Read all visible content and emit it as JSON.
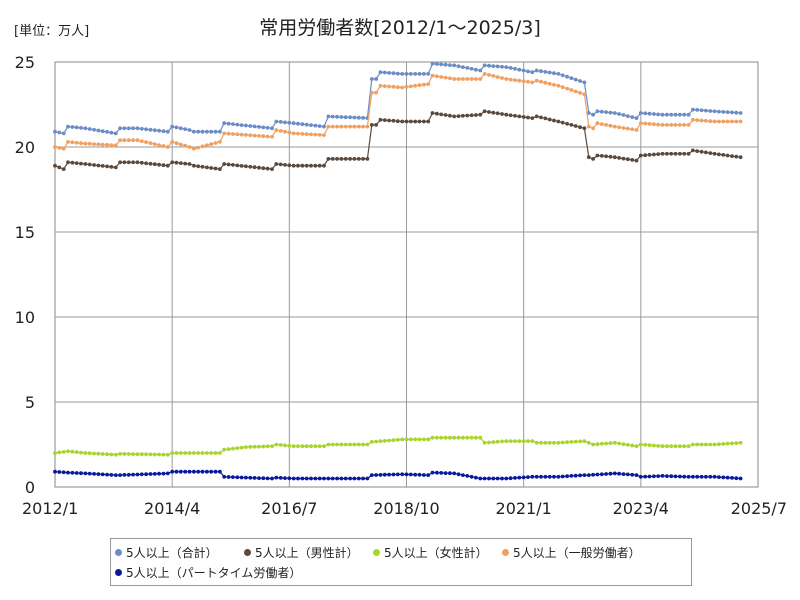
{
  "page": {
    "unit_label": "[単位：万人]",
    "title": "常用労働者数[2012/1～2025/3]"
  },
  "chart_data": {
    "type": "line",
    "title": "常用労働者数[2012/1～2025/3]",
    "unit": "[単位：万人]",
    "x_start": "2012/1",
    "x_end": "2025/3",
    "x_tick_labels": [
      "2012/1",
      "2014/4",
      "2016/7",
      "2018/10",
      "2021/1",
      "2023/4",
      "2025/7"
    ],
    "y_ticks": [
      0,
      5,
      10,
      15,
      20,
      25
    ],
    "ylim": [
      0,
      25
    ],
    "grid": true,
    "legend_position": "bottom",
    "series": [
      {
        "name": "5人以上（合計）",
        "color": "#6b8cc4",
        "anchors": [
          [
            "2012/1",
            20.9
          ],
          [
            "2012/3",
            20.8
          ],
          [
            "2012/4",
            21.2
          ],
          [
            "2012/8",
            21.1
          ],
          [
            "2013/3",
            20.8
          ],
          [
            "2013/4",
            21.1
          ],
          [
            "2013/8",
            21.1
          ],
          [
            "2014/3",
            20.9
          ],
          [
            "2014/4",
            21.2
          ],
          [
            "2014/8",
            21.0
          ],
          [
            "2014/9",
            20.9
          ],
          [
            "2015/3",
            20.9
          ],
          [
            "2015/4",
            21.4
          ],
          [
            "2016/3",
            21.1
          ],
          [
            "2016/4",
            21.5
          ],
          [
            "2016/8",
            21.4
          ],
          [
            "2017/3",
            21.2
          ],
          [
            "2017/4",
            21.8
          ],
          [
            "2018/1",
            21.7
          ],
          [
            "2018/2",
            24.0
          ],
          [
            "2018/3",
            24.0
          ],
          [
            "2018/4",
            24.4
          ],
          [
            "2018/9",
            24.3
          ],
          [
            "2019/3",
            24.3
          ],
          [
            "2019/4",
            24.9
          ],
          [
            "2019/9",
            24.8
          ],
          [
            "2020/3",
            24.5
          ],
          [
            "2020/4",
            24.8
          ],
          [
            "2020/9",
            24.7
          ],
          [
            "2021/3",
            24.4
          ],
          [
            "2021/4",
            24.5
          ],
          [
            "2021/9",
            24.3
          ],
          [
            "2022/3",
            23.8
          ],
          [
            "2022/4",
            22.0
          ],
          [
            "2022/5",
            21.9
          ],
          [
            "2022/6",
            22.1
          ],
          [
            "2022/10",
            22.0
          ],
          [
            "2023/3",
            21.7
          ],
          [
            "2023/4",
            22.0
          ],
          [
            "2023/9",
            21.9
          ],
          [
            "2024/3",
            21.9
          ],
          [
            "2024/4",
            22.2
          ],
          [
            "2024/9",
            22.1
          ],
          [
            "2025/3",
            22.0
          ]
        ]
      },
      {
        "name": "5人以上（男性計）",
        "color": "#5a4a3e",
        "anchors": [
          [
            "2012/1",
            18.9
          ],
          [
            "2012/3",
            18.7
          ],
          [
            "2012/4",
            19.1
          ],
          [
            "2012/8",
            19.0
          ],
          [
            "2013/3",
            18.8
          ],
          [
            "2013/4",
            19.1
          ],
          [
            "2013/8",
            19.1
          ],
          [
            "2014/3",
            18.9
          ],
          [
            "2014/4",
            19.1
          ],
          [
            "2014/8",
            19.0
          ],
          [
            "2014/9",
            18.9
          ],
          [
            "2015/3",
            18.7
          ],
          [
            "2015/4",
            19.0
          ],
          [
            "2016/3",
            18.7
          ],
          [
            "2016/4",
            19.0
          ],
          [
            "2016/8",
            18.9
          ],
          [
            "2017/3",
            18.9
          ],
          [
            "2017/4",
            19.3
          ],
          [
            "2018/1",
            19.3
          ],
          [
            "2018/2",
            21.3
          ],
          [
            "2018/3",
            21.3
          ],
          [
            "2018/4",
            21.6
          ],
          [
            "2018/9",
            21.5
          ],
          [
            "2019/3",
            21.5
          ],
          [
            "2019/4",
            22.0
          ],
          [
            "2019/9",
            21.8
          ],
          [
            "2020/3",
            21.9
          ],
          [
            "2020/4",
            22.1
          ],
          [
            "2020/9",
            21.9
          ],
          [
            "2021/3",
            21.7
          ],
          [
            "2021/4",
            21.8
          ],
          [
            "2021/9",
            21.5
          ],
          [
            "2022/3",
            21.1
          ],
          [
            "2022/4",
            19.4
          ],
          [
            "2022/5",
            19.3
          ],
          [
            "2022/6",
            19.5
          ],
          [
            "2022/10",
            19.4
          ],
          [
            "2023/3",
            19.2
          ],
          [
            "2023/4",
            19.5
          ],
          [
            "2023/9",
            19.6
          ],
          [
            "2024/3",
            19.6
          ],
          [
            "2024/4",
            19.8
          ],
          [
            "2024/9",
            19.6
          ],
          [
            "2025/3",
            19.4
          ]
        ]
      },
      {
        "name": "5人以上（女性計）",
        "color": "#a8d42c",
        "anchors": [
          [
            "2012/1",
            2.0
          ],
          [
            "2012/4",
            2.1
          ],
          [
            "2012/8",
            2.0
          ],
          [
            "2013/3",
            1.9
          ],
          [
            "2013/4",
            1.95
          ],
          [
            "2014/3",
            1.9
          ],
          [
            "2014/4",
            2.0
          ],
          [
            "2014/9",
            2.0
          ],
          [
            "2015/3",
            2.0
          ],
          [
            "2015/4",
            2.2
          ],
          [
            "2015/9",
            2.35
          ],
          [
            "2016/3",
            2.4
          ],
          [
            "2016/4",
            2.5
          ],
          [
            "2016/8",
            2.4
          ],
          [
            "2017/3",
            2.4
          ],
          [
            "2017/4",
            2.5
          ],
          [
            "2018/1",
            2.5
          ],
          [
            "2018/2",
            2.65
          ],
          [
            "2018/9",
            2.8
          ],
          [
            "2019/3",
            2.8
          ],
          [
            "2019/4",
            2.9
          ],
          [
            "2019/9",
            2.9
          ],
          [
            "2020/3",
            2.9
          ],
          [
            "2020/4",
            2.6
          ],
          [
            "2020/9",
            2.7
          ],
          [
            "2021/3",
            2.7
          ],
          [
            "2021/4",
            2.6
          ],
          [
            "2021/9",
            2.6
          ],
          [
            "2022/3",
            2.7
          ],
          [
            "2022/4",
            2.6
          ],
          [
            "2022/5",
            2.5
          ],
          [
            "2022/10",
            2.6
          ],
          [
            "2023/3",
            2.4
          ],
          [
            "2023/4",
            2.5
          ],
          [
            "2023/9",
            2.4
          ],
          [
            "2024/3",
            2.4
          ],
          [
            "2024/4",
            2.5
          ],
          [
            "2024/9",
            2.5
          ],
          [
            "2025/3",
            2.6
          ]
        ]
      },
      {
        "name": "5人以上（一般労働者）",
        "color": "#f0a060",
        "anchors": [
          [
            "2012/1",
            20.0
          ],
          [
            "2012/3",
            19.9
          ],
          [
            "2012/4",
            20.3
          ],
          [
            "2012/8",
            20.2
          ],
          [
            "2013/3",
            20.1
          ],
          [
            "2013/4",
            20.4
          ],
          [
            "2013/8",
            20.4
          ],
          [
            "2014/3",
            20.0
          ],
          [
            "2014/4",
            20.3
          ],
          [
            "2014/8",
            20.0
          ],
          [
            "2014/9",
            19.9
          ],
          [
            "2015/3",
            20.3
          ],
          [
            "2015/4",
            20.8
          ],
          [
            "2016/3",
            20.6
          ],
          [
            "2016/4",
            21.0
          ],
          [
            "2016/8",
            20.8
          ],
          [
            "2017/3",
            20.7
          ],
          [
            "2017/4",
            21.2
          ],
          [
            "2018/1",
            21.2
          ],
          [
            "2018/2",
            23.2
          ],
          [
            "2018/3",
            23.2
          ],
          [
            "2018/4",
            23.6
          ],
          [
            "2018/9",
            23.5
          ],
          [
            "2019/3",
            23.7
          ],
          [
            "2019/4",
            24.2
          ],
          [
            "2019/9",
            24.0
          ],
          [
            "2020/3",
            24.0
          ],
          [
            "2020/4",
            24.3
          ],
          [
            "2020/9",
            24.0
          ],
          [
            "2021/3",
            23.8
          ],
          [
            "2021/4",
            23.9
          ],
          [
            "2021/9",
            23.6
          ],
          [
            "2022/3",
            23.1
          ],
          [
            "2022/4",
            21.2
          ],
          [
            "2022/5",
            21.1
          ],
          [
            "2022/6",
            21.4
          ],
          [
            "2022/10",
            21.2
          ],
          [
            "2023/3",
            21.0
          ],
          [
            "2023/4",
            21.4
          ],
          [
            "2023/9",
            21.3
          ],
          [
            "2024/3",
            21.3
          ],
          [
            "2024/4",
            21.6
          ],
          [
            "2024/9",
            21.5
          ],
          [
            "2025/3",
            21.5
          ]
        ]
      },
      {
        "name": "5人以上（パートタイム労働者）",
        "color": "#0a1a9a",
        "anchors": [
          [
            "2012/1",
            0.9
          ],
          [
            "2012/4",
            0.85
          ],
          [
            "2012/8",
            0.8
          ],
          [
            "2013/3",
            0.7
          ],
          [
            "2013/4",
            0.7
          ],
          [
            "2014/3",
            0.8
          ],
          [
            "2014/4",
            0.9
          ],
          [
            "2014/9",
            0.9
          ],
          [
            "2015/3",
            0.9
          ],
          [
            "2015/4",
            0.6
          ],
          [
            "2015/9",
            0.55
          ],
          [
            "2016/3",
            0.5
          ],
          [
            "2016/4",
            0.55
          ],
          [
            "2016/8",
            0.5
          ],
          [
            "2017/3",
            0.5
          ],
          [
            "2017/4",
            0.5
          ],
          [
            "2018/1",
            0.5
          ],
          [
            "2018/2",
            0.7
          ],
          [
            "2018/9",
            0.75
          ],
          [
            "2019/3",
            0.7
          ],
          [
            "2019/4",
            0.85
          ],
          [
            "2019/9",
            0.8
          ],
          [
            "2020/3",
            0.5
          ],
          [
            "2020/4",
            0.5
          ],
          [
            "2020/9",
            0.5
          ],
          [
            "2021/3",
            0.6
          ],
          [
            "2021/4",
            0.6
          ],
          [
            "2021/9",
            0.6
          ],
          [
            "2022/3",
            0.7
          ],
          [
            "2022/4",
            0.7
          ],
          [
            "2022/10",
            0.8
          ],
          [
            "2023/3",
            0.7
          ],
          [
            "2023/4",
            0.6
          ],
          [
            "2023/9",
            0.65
          ],
          [
            "2024/3",
            0.6
          ],
          [
            "2024/4",
            0.6
          ],
          [
            "2024/9",
            0.6
          ],
          [
            "2025/3",
            0.5
          ]
        ]
      }
    ]
  }
}
